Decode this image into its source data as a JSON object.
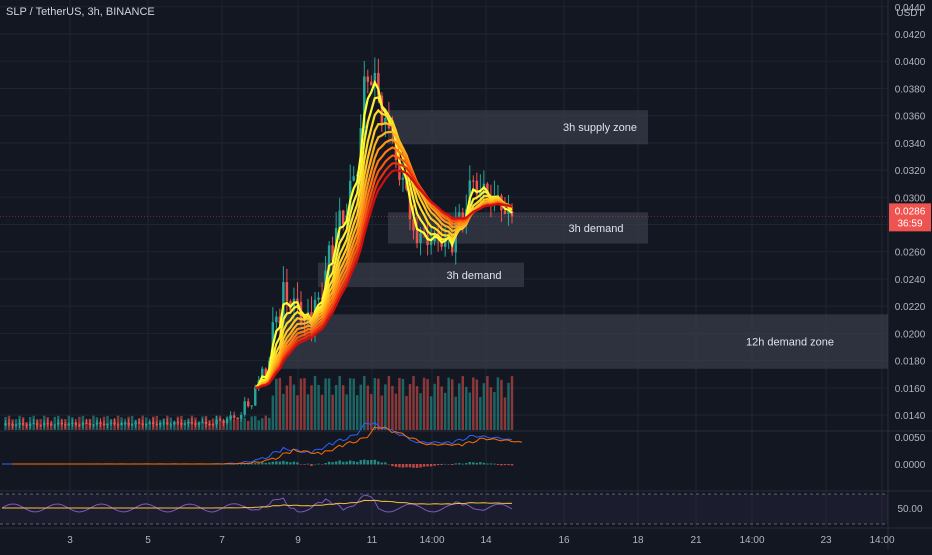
{
  "header": {
    "title": "SLP / TetherUS, 3h, BINANCE"
  },
  "colors": {
    "background": "#131722",
    "up": "#26a69a",
    "down": "#ef5350",
    "grid": "#1f2430",
    "axis_text": "#b2b5be",
    "zone_fill": "#3a3e4a",
    "price_tag": "#ef5350",
    "ribbon": [
      "#ffff33",
      "#ffee33",
      "#ffdd22",
      "#ffc822",
      "#ffb020",
      "#ff9518",
      "#ff7814",
      "#f55a10",
      "#e83010",
      "#d01010"
    ],
    "macd_line": "#2962ff",
    "signal_line": "#ff6d00",
    "rsi_line": "#7e57c2",
    "rsi_ma": "#f5c242"
  },
  "chart_data": {
    "type": "candlestick",
    "title": "SLP / TetherUS, 3h, BINANCE",
    "y_axis": {
      "unit": "USDT",
      "ticks": [
        "0.0440",
        "0.0420",
        "0.0400",
        "0.0380",
        "0.0360",
        "0.0340",
        "0.0320",
        "0.0300",
        "0.0280",
        "0.0260",
        "0.0240",
        "0.0220",
        "0.0200",
        "0.0180",
        "0.0160",
        "0.0140"
      ],
      "range": [
        0.0129,
        0.0445
      ],
      "scale": "linear"
    },
    "x_axis": {
      "ticks": [
        "3",
        "5",
        "7",
        "9",
        "11",
        "14:00",
        "14",
        "16",
        "18",
        "21",
        "14:00",
        "23",
        "14:00"
      ]
    },
    "last_price": {
      "value": "0.0286",
      "countdown": "36:59"
    },
    "zones": [
      {
        "label": "3h supply zone",
        "top": 0.0364,
        "bottom": 0.0339
      },
      {
        "label": "3h demand",
        "top": 0.0289,
        "bottom": 0.0266
      },
      {
        "label": "3h demand",
        "top": 0.0252,
        "bottom": 0.0234
      },
      {
        "label": "12h demand zone",
        "top": 0.0214,
        "bottom": 0.0174
      }
    ],
    "macd_pane": {
      "ticks": [
        "0.0050",
        "0.0000"
      ]
    },
    "rsi_pane": {
      "ticks": [
        "50.00"
      ]
    },
    "grid": true
  }
}
